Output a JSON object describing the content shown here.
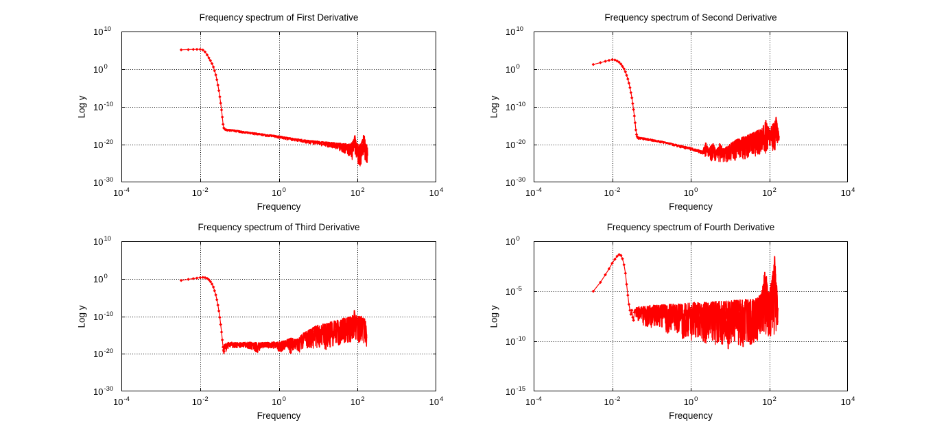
{
  "figure": {
    "background": "#ffffff",
    "axis_color": "#000000",
    "grid_color": "#000000",
    "series_color": "#ff0000",
    "marker": "diamond",
    "tick_base": "10"
  },
  "chart_data": [
    {
      "type": "line",
      "title": "Frequency spectrum of First Derivative",
      "xlabel": "Frequency",
      "ylabel": "Log y",
      "xscale": "log10",
      "yscale": "log10",
      "grid": true,
      "legend": "none",
      "xlim_exponents": [
        -4,
        4
      ],
      "ylim_exponents": [
        -30,
        10
      ],
      "x_tick_exponents": [
        -4,
        -2,
        0,
        2,
        4
      ],
      "y_tick_exponents": [
        10,
        0,
        -10,
        -20,
        -30
      ],
      "series_color": "#ff0000",
      "points_f_log10y": [
        [
          0.0033,
          5.15
        ],
        [
          0.005,
          5.2
        ],
        [
          0.0067,
          5.25
        ],
        [
          0.0083,
          5.27
        ],
        [
          0.01,
          5.28
        ],
        [
          0.0117,
          5.1
        ],
        [
          0.0133,
          4.6
        ],
        [
          0.015,
          3.8
        ],
        [
          0.0167,
          3.0
        ],
        [
          0.0183,
          2.3
        ],
        [
          0.02,
          1.5
        ],
        [
          0.0217,
          0.6
        ],
        [
          0.0233,
          -0.4
        ],
        [
          0.025,
          -1.5
        ],
        [
          0.0267,
          -2.8
        ],
        [
          0.0283,
          -4.2
        ],
        [
          0.03,
          -5.7
        ],
        [
          0.0317,
          -7.3
        ],
        [
          0.0333,
          -9.0
        ],
        [
          0.035,
          -10.8
        ],
        [
          0.0367,
          -12.7
        ],
        [
          0.0383,
          -14.6
        ],
        [
          0.04,
          -15.6
        ],
        [
          0.0433,
          -16.0
        ],
        [
          0.0467,
          -16.1
        ],
        [
          0.05,
          -16.2
        ]
      ],
      "noise_band_f_lo_hi": [
        [
          0.05,
          -16.4,
          -15.9
        ],
        [
          0.08,
          -16.7,
          -16.2
        ],
        [
          0.15,
          -17.1,
          -16.6
        ],
        [
          0.3,
          -17.5,
          -17.0
        ],
        [
          0.6,
          -18.0,
          -17.4
        ],
        [
          1.0,
          -18.3,
          -17.7
        ],
        [
          1.7,
          -18.8,
          -18.1
        ],
        [
          3,
          -19.2,
          -18.5
        ],
        [
          5,
          -19.6,
          -18.8
        ],
        [
          8,
          -20.0,
          -19.0
        ],
        [
          12,
          -20.3,
          -19.2
        ],
        [
          20,
          -20.8,
          -19.4
        ],
        [
          30,
          -21.4,
          -19.6
        ],
        [
          42,
          -22.0,
          -19.7
        ],
        [
          55,
          -22.8,
          -19.8
        ],
        [
          68,
          -23.8,
          -19.7
        ],
        [
          78,
          -24.2,
          -19.0
        ],
        [
          85,
          -22.8,
          -17.4
        ],
        [
          92,
          -24.5,
          -19.4
        ],
        [
          100,
          -25.6,
          -19.9
        ],
        [
          112,
          -26.4,
          -20.0
        ],
        [
          122,
          -25.2,
          -19.7
        ],
        [
          132,
          -24.0,
          -18.9
        ],
        [
          142,
          -23.2,
          -17.5
        ],
        [
          150,
          -23.6,
          -17.8
        ],
        [
          158,
          -24.6,
          -19.2
        ],
        [
          166,
          -26.0,
          -19.8
        ],
        [
          174,
          -26.3,
          -20.2
        ],
        [
          180,
          -24.8,
          -20.6
        ]
      ]
    },
    {
      "type": "line",
      "title": "Frequency spectrum of Second Derivative",
      "xlabel": "Frequency",
      "ylabel": "Log y",
      "xscale": "log10",
      "yscale": "log10",
      "grid": true,
      "legend": "none",
      "xlim_exponents": [
        -4,
        4
      ],
      "ylim_exponents": [
        -30,
        10
      ],
      "x_tick_exponents": [
        -4,
        -2,
        0,
        2,
        4
      ],
      "y_tick_exponents": [
        10,
        0,
        -10,
        -20,
        -30
      ],
      "series_color": "#ff0000",
      "points_f_log10y": [
        [
          0.0033,
          1.25
        ],
        [
          0.005,
          1.75
        ],
        [
          0.0067,
          2.1
        ],
        [
          0.0083,
          2.35
        ],
        [
          0.01,
          2.52
        ],
        [
          0.0117,
          2.45
        ],
        [
          0.0133,
          2.2
        ],
        [
          0.015,
          1.85
        ],
        [
          0.0167,
          1.35
        ],
        [
          0.0183,
          0.75
        ],
        [
          0.02,
          0.1
        ],
        [
          0.0217,
          -0.7
        ],
        [
          0.0233,
          -1.6
        ],
        [
          0.025,
          -2.6
        ],
        [
          0.0267,
          -3.7
        ],
        [
          0.0283,
          -4.9
        ],
        [
          0.03,
          -6.2
        ],
        [
          0.0317,
          -7.6
        ],
        [
          0.0333,
          -9.1
        ],
        [
          0.035,
          -10.7
        ],
        [
          0.0367,
          -12.4
        ],
        [
          0.0383,
          -14.2
        ],
        [
          0.04,
          -16.1
        ],
        [
          0.0417,
          -17.3
        ],
        [
          0.0433,
          -17.9
        ],
        [
          0.045,
          -18.2
        ],
        [
          0.0467,
          -18.3
        ]
      ],
      "noise_band_f_lo_hi": [
        [
          0.047,
          -18.6,
          -18.0
        ],
        [
          0.08,
          -18.9,
          -18.4
        ],
        [
          0.15,
          -19.4,
          -18.9
        ],
        [
          0.3,
          -20.1,
          -19.6
        ],
        [
          0.6,
          -20.9,
          -20.3
        ],
        [
          1.0,
          -21.5,
          -20.8
        ],
        [
          1.5,
          -22.0,
          -21.3
        ],
        [
          2.0,
          -22.6,
          -21.7
        ],
        [
          2.4,
          -23.7,
          -19.3
        ],
        [
          2.9,
          -24.3,
          -21.3
        ],
        [
          3.6,
          -24.5,
          -19.5
        ],
        [
          4.4,
          -24.3,
          -21.4
        ],
        [
          5.5,
          -24.6,
          -19.7
        ],
        [
          7.0,
          -24.5,
          -21.2
        ],
        [
          9,
          -24.6,
          -20.2
        ],
        [
          11,
          -24.3,
          -19.4
        ],
        [
          14,
          -24.2,
          -18.8
        ],
        [
          18,
          -24.0,
          -18.3
        ],
        [
          23,
          -23.8,
          -17.9
        ],
        [
          30,
          -23.5,
          -17.3
        ],
        [
          40,
          -23.2,
          -16.8
        ],
        [
          52,
          -23.0,
          -16.2
        ],
        [
          64,
          -22.8,
          -15.7
        ],
        [
          74,
          -22.7,
          -14.6
        ],
        [
          82,
          -22.6,
          -13.1
        ],
        [
          88,
          -22.7,
          -14.6
        ],
        [
          96,
          -22.5,
          -15.5
        ],
        [
          108,
          -22.3,
          -15.2
        ],
        [
          120,
          -22.0,
          -14.8
        ],
        [
          132,
          -21.8,
          -14.0
        ],
        [
          142,
          -21.7,
          -13.2
        ],
        [
          150,
          -21.6,
          -12.7
        ],
        [
          158,
          -21.7,
          -13.9
        ],
        [
          166,
          -21.6,
          -15.3
        ],
        [
          173,
          -21.4,
          -16.6
        ],
        [
          178,
          -21.2,
          -17.6
        ]
      ]
    },
    {
      "type": "line",
      "title": "Frequency spectrum of Third Derivative",
      "xlabel": "Frequency",
      "ylabel": "Log y",
      "xscale": "log10",
      "yscale": "log10",
      "grid": true,
      "legend": "none",
      "xlim_exponents": [
        -4,
        4
      ],
      "ylim_exponents": [
        -30,
        10
      ],
      "x_tick_exponents": [
        -4,
        -2,
        0,
        2,
        4
      ],
      "y_tick_exponents": [
        10,
        0,
        -10,
        -20,
        -30
      ],
      "series_color": "#ff0000",
      "points_f_log10y": [
        [
          0.0033,
          -0.45
        ],
        [
          0.005,
          -0.15
        ],
        [
          0.0067,
          0.05
        ],
        [
          0.0083,
          0.2
        ],
        [
          0.01,
          0.32
        ],
        [
          0.0117,
          0.38
        ],
        [
          0.0133,
          0.3
        ],
        [
          0.015,
          0.1
        ],
        [
          0.0167,
          -0.25
        ],
        [
          0.0183,
          -0.75
        ],
        [
          0.02,
          -1.4
        ],
        [
          0.0217,
          -2.2
        ],
        [
          0.0233,
          -3.2
        ],
        [
          0.025,
          -4.3
        ],
        [
          0.0267,
          -5.6
        ],
        [
          0.0283,
          -7.0
        ],
        [
          0.03,
          -8.6
        ],
        [
          0.0317,
          -10.3
        ],
        [
          0.0333,
          -12.2
        ],
        [
          0.035,
          -14.2
        ],
        [
          0.0367,
          -16.3
        ],
        [
          0.0383,
          -18.2
        ],
        [
          0.0392,
          -19.0
        ],
        [
          0.04,
          -19.4
        ]
      ],
      "noise_band_f_lo_hi": [
        [
          0.04,
          -20.4,
          -17.3
        ],
        [
          0.055,
          -18.2,
          -16.9
        ],
        [
          0.08,
          -18.5,
          -17.0
        ],
        [
          0.12,
          -18.2,
          -17.0
        ],
        [
          0.18,
          -18.6,
          -16.9
        ],
        [
          0.28,
          -19.9,
          -17.0
        ],
        [
          0.4,
          -18.5,
          -17.0
        ],
        [
          0.6,
          -18.4,
          -16.9
        ],
        [
          0.85,
          -18.6,
          -16.8
        ],
        [
          1.1,
          -19.9,
          -16.8
        ],
        [
          1.5,
          -18.7,
          -16.4
        ],
        [
          2.0,
          -19.9,
          -15.8
        ],
        [
          2.6,
          -18.8,
          -16.1
        ],
        [
          3.2,
          -19.8,
          -15.9
        ],
        [
          4.0,
          -18.8,
          -14.5
        ],
        [
          5.5,
          -18.6,
          -13.8
        ],
        [
          7.0,
          -18.5,
          -13.2
        ],
        [
          9.0,
          -18.6,
          -12.5
        ],
        [
          12,
          -18.2,
          -12.1
        ],
        [
          16,
          -19.1,
          -11.8
        ],
        [
          21,
          -18.0,
          -11.5
        ],
        [
          28,
          -17.8,
          -11.1
        ],
        [
          38,
          -17.6,
          -10.7
        ],
        [
          50,
          -17.3,
          -10.4
        ],
        [
          62,
          -17.1,
          -10.2
        ],
        [
          74,
          -17.0,
          -9.9
        ],
        [
          82,
          -16.9,
          -8.1
        ],
        [
          88,
          -17.0,
          -9.7
        ],
        [
          96,
          -17.1,
          -9.8
        ],
        [
          108,
          -17.0,
          -10.0
        ],
        [
          120,
          -16.9,
          -10.0
        ],
        [
          132,
          -17.0,
          -10.1
        ],
        [
          144,
          -17.2,
          -10.4
        ],
        [
          155,
          -17.4,
          -10.8
        ],
        [
          163,
          -17.9,
          -11.3
        ],
        [
          169,
          -18.5,
          -12.5
        ],
        [
          172,
          -18.7,
          -14.5
        ]
      ]
    },
    {
      "type": "line",
      "title": "Frequency spectrum of Fourth Derivative",
      "xlabel": "Frequency",
      "ylabel": "Log y",
      "xscale": "log10",
      "yscale": "log10",
      "grid": true,
      "legend": "none",
      "xlim_exponents": [
        -4,
        4
      ],
      "ylim_exponents": [
        -15,
        0
      ],
      "x_tick_exponents": [
        -4,
        -2,
        0,
        2,
        4
      ],
      "y_tick_exponents": [
        0,
        -5,
        -10,
        -15
      ],
      "series_color": "#ff0000",
      "points_f_log10y": [
        [
          0.0033,
          -5.0
        ],
        [
          0.005,
          -4.1
        ],
        [
          0.0067,
          -3.35
        ],
        [
          0.0083,
          -2.75
        ],
        [
          0.01,
          -2.2
        ],
        [
          0.0117,
          -1.8
        ],
        [
          0.0133,
          -1.5
        ],
        [
          0.015,
          -1.33
        ],
        [
          0.0167,
          -1.42
        ],
        [
          0.0183,
          -1.75
        ],
        [
          0.02,
          -2.35
        ],
        [
          0.0217,
          -3.2
        ],
        [
          0.0233,
          -4.3
        ],
        [
          0.025,
          -5.4
        ],
        [
          0.0267,
          -6.3
        ],
        [
          0.0283,
          -6.9
        ],
        [
          0.03,
          -7.3
        ],
        [
          0.0317,
          -6.9
        ],
        [
          0.0333,
          -7.6
        ],
        [
          0.035,
          -7.9
        ],
        [
          0.0367,
          -7.1
        ],
        [
          0.0383,
          -6.9
        ]
      ],
      "noise_band_f_lo_hi": [
        [
          0.04,
          -7.7,
          -6.6
        ],
        [
          0.06,
          -8.4,
          -6.5
        ],
        [
          0.09,
          -8.7,
          -6.4
        ],
        [
          0.15,
          -8.4,
          -6.4
        ],
        [
          0.25,
          -9.3,
          -6.3
        ],
        [
          0.4,
          -8.9,
          -6.3
        ],
        [
          0.6,
          -9.7,
          -6.25
        ],
        [
          1.0,
          -10.1,
          -6.15
        ],
        [
          1.6,
          -9.5,
          -6.1
        ],
        [
          2.5,
          -10.4,
          -6.1
        ],
        [
          4,
          -10.7,
          -6.0
        ],
        [
          6,
          -10.3,
          -6.0
        ],
        [
          9,
          -10.8,
          -5.95
        ],
        [
          14,
          -10.5,
          -5.9
        ],
        [
          20,
          -10.9,
          -5.85
        ],
        [
          30,
          -10.4,
          -5.8
        ],
        [
          42,
          -10.1,
          -5.7
        ],
        [
          55,
          -9.8,
          -5.5
        ],
        [
          66,
          -9.6,
          -4.9
        ],
        [
          73,
          -9.4,
          -3.6
        ],
        [
          78,
          -9.3,
          -2.65
        ],
        [
          84,
          -9.3,
          -3.4
        ],
        [
          92,
          -9.5,
          -5.1
        ],
        [
          100,
          -9.6,
          -4.9
        ],
        [
          110,
          -9.4,
          -4.3
        ],
        [
          120,
          -9.5,
          -3.5
        ],
        [
          130,
          -9.7,
          -2.4
        ],
        [
          138,
          -9.9,
          -1.35
        ],
        [
          146,
          -9.5,
          -2.3
        ],
        [
          154,
          -9.1,
          -4.3
        ],
        [
          161,
          -8.7,
          -5.9
        ],
        [
          167,
          -8.1,
          -6.7
        ]
      ]
    }
  ]
}
